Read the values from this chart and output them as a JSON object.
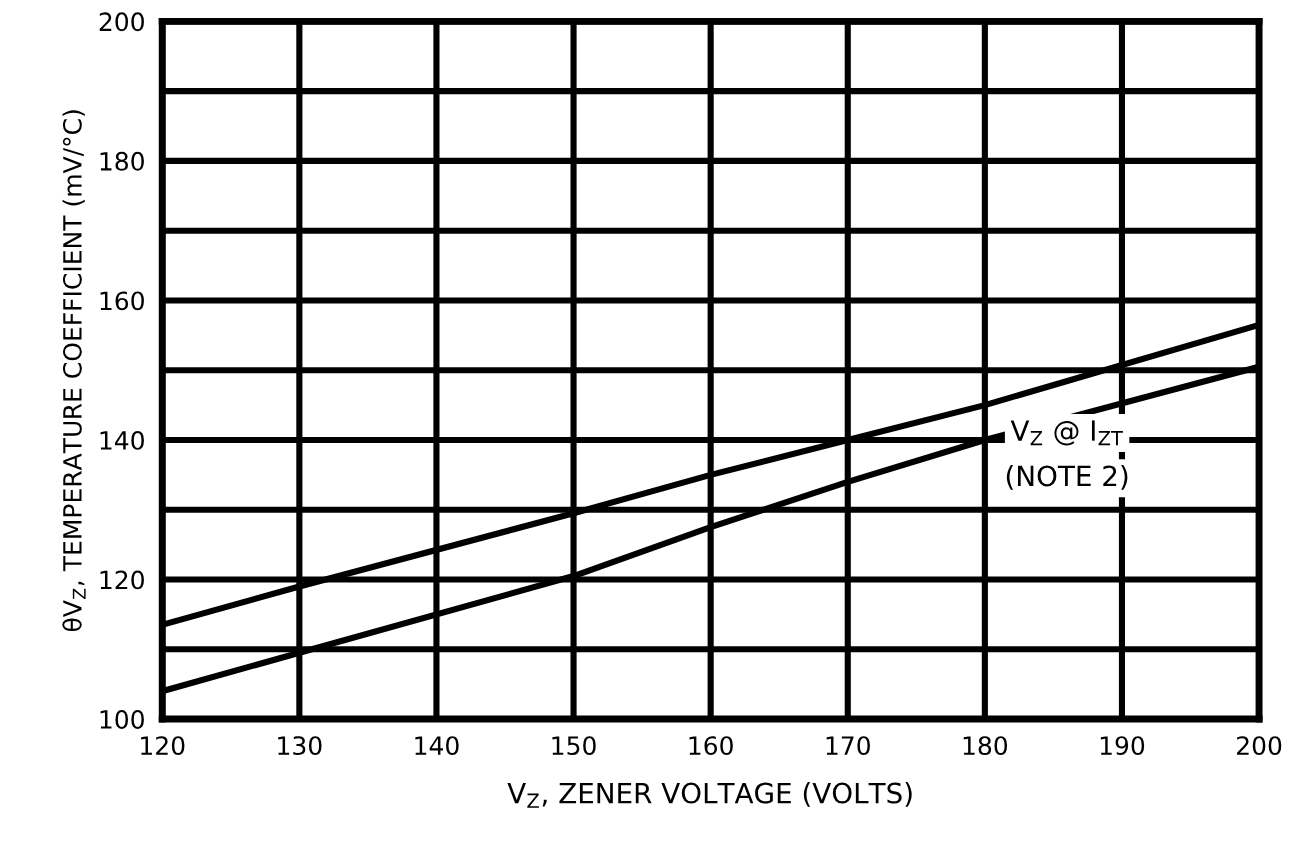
{
  "chart_data": {
    "type": "line",
    "xlabel": "V$_{Z}$, ZENER VOLTAGE (VOLTS)",
    "ylabel": "θV$_{Z}$, TEMPERATURE COEFFICIENT (mV/°C)",
    "x": [
      120,
      130,
      150,
      160,
      170,
      180,
      200
    ],
    "series": [
      {
        "color": "#000000",
        "values": [
          113.5,
          119,
          129.5,
          135,
          140,
          145,
          156.5
        ]
      },
      {
        "color": "#000000",
        "values": [
          104,
          109.5,
          120.5,
          127.5,
          134,
          140,
          150.5
        ]
      }
    ],
    "xlim": [
      120,
      200
    ],
    "xticks": [
      120,
      130,
      140,
      150,
      160,
      170,
      180,
      190,
      200
    ],
    "ylim": [
      100,
      200
    ],
    "yticks": [
      100,
      {
        "value": 110,
        "label": null
      },
      120,
      {
        "value": 130,
        "label": null
      },
      140,
      {
        "value": 150,
        "label": null
      },
      160,
      {
        "value": 170,
        "label": null
      },
      180,
      {
        "value": 190,
        "label": null
      },
      200
    ],
    "grid": true,
    "marker": "none",
    "line_style": "solid",
    "legend": false,
    "annotations": [
      "V$_{Z}$ @ I$_{ZT}$\n(NOTE 2)"
    ]
  }
}
